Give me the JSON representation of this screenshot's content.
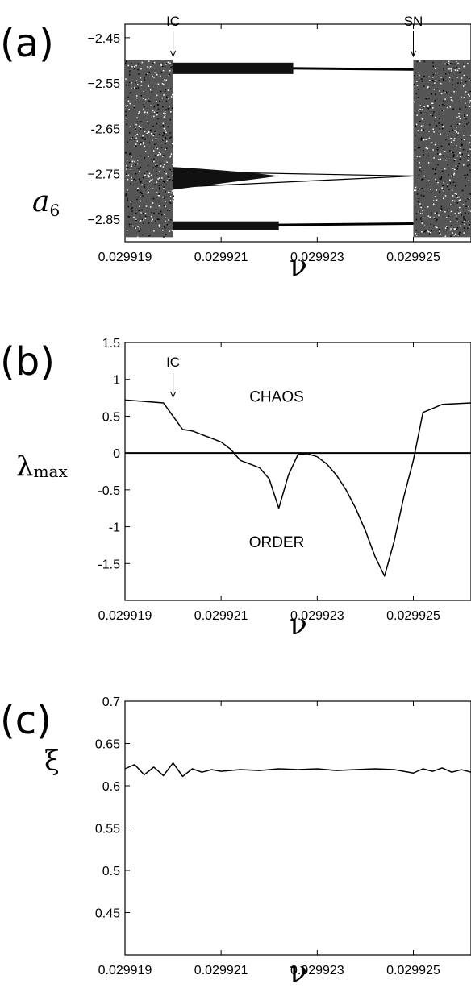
{
  "chart_data": [
    {
      "type": "scatter",
      "panel_label": "(a)",
      "xlabel": "ν",
      "ylabel": "a",
      "ylabel_sub": "6",
      "xlim": [
        0.029919,
        0.0299262
      ],
      "ylim": [
        -2.9,
        -2.42
      ],
      "xticks": [
        {
          "value": 0.029919,
          "label": "0.029919"
        },
        {
          "value": 0.029921,
          "label": "0.029921"
        },
        {
          "value": 0.029923,
          "label": "0.029923"
        },
        {
          "value": 0.029925,
          "label": "0.029925"
        }
      ],
      "yticks": [
        {
          "value": -2.45,
          "label": "−2.45"
        },
        {
          "value": -2.55,
          "label": "−2.55"
        },
        {
          "value": -2.65,
          "label": "-2.65"
        },
        {
          "value": -2.75,
          "label": "−2.75"
        },
        {
          "value": -2.85,
          "label": "−2.85"
        }
      ],
      "chaotic_regions": [
        {
          "x_range": [
            0.029919,
            0.02992
          ],
          "y_range": [
            -2.89,
            -2.5
          ]
        },
        {
          "x_range": [
            0.029925,
            0.0299262
          ],
          "y_range": [
            -2.89,
            -2.5
          ]
        }
      ],
      "periodic_branches": [
        {
          "y_start": -2.515,
          "y_end": -2.52
        },
        {
          "y_start": -2.745,
          "y_end": -2.755
        },
        {
          "y_start": -2.78,
          "y_end": -2.755
        },
        {
          "y_start": -2.865,
          "y_end": -2.86
        }
      ],
      "annotations": [
        {
          "text": "IC",
          "x": 0.02992
        },
        {
          "text": "SN",
          "x": 0.029925
        }
      ]
    },
    {
      "type": "line",
      "panel_label": "(b)",
      "xlabel": "ν",
      "ylabel": "λ",
      "ylabel_sub": "max",
      "xlim": [
        0.029919,
        0.0299262
      ],
      "ylim": [
        -2.0,
        1.5
      ],
      "xticks": [
        {
          "value": 0.029919,
          "label": "0.029919"
        },
        {
          "value": 0.029921,
          "label": "0.029921"
        },
        {
          "value": 0.029923,
          "label": "0.029923"
        },
        {
          "value": 0.029925,
          "label": "0.029925"
        }
      ],
      "yticks": [
        {
          "value": 1.5,
          "label": "1.5"
        },
        {
          "value": 1,
          "label": "1"
        },
        {
          "value": 0.5,
          "label": "0.5"
        },
        {
          "value": 0,
          "label": "0"
        },
        {
          "value": -0.5,
          "label": "-0.5"
        },
        {
          "value": -1,
          "label": "-1"
        },
        {
          "value": -1.5,
          "label": "-1.5"
        }
      ],
      "zero_line": true,
      "x": [
        0.029919,
        0.0299194,
        0.0299198,
        0.02992,
        0.0299202,
        0.0299204,
        0.0299206,
        0.0299208,
        0.029921,
        0.0299212,
        0.0299214,
        0.0299216,
        0.0299218,
        0.029922,
        0.0299222,
        0.0299224,
        0.0299226,
        0.0299228,
        0.029923,
        0.0299232,
        0.0299234,
        0.0299236,
        0.0299238,
        0.029924,
        0.0299242,
        0.0299244,
        0.0299246,
        0.0299248,
        0.029925,
        0.0299252,
        0.0299256,
        0.0299262
      ],
      "y": [
        0.72,
        0.7,
        0.68,
        0.5,
        0.32,
        0.3,
        0.25,
        0.2,
        0.15,
        0.05,
        -0.1,
        -0.15,
        -0.2,
        -0.35,
        -0.75,
        -0.3,
        -0.02,
        -0.01,
        -0.05,
        -0.15,
        -0.3,
        -0.5,
        -0.75,
        -1.05,
        -1.4,
        -1.67,
        -1.2,
        -0.6,
        -0.1,
        0.55,
        0.66,
        0.68
      ],
      "region_labels": [
        {
          "text": "CHAOS"
        },
        {
          "text": "ORDER"
        }
      ],
      "annotations": [
        {
          "text": "IC",
          "x": 0.02992
        }
      ]
    },
    {
      "type": "line",
      "panel_label": "(c)",
      "xlabel": "ν",
      "ylabel": "ξ",
      "xlim": [
        0.029919,
        0.0299262
      ],
      "ylim": [
        0.4,
        0.7
      ],
      "xticks": [
        {
          "value": 0.029919,
          "label": "0.029919"
        },
        {
          "value": 0.029921,
          "label": "0.029921"
        },
        {
          "value": 0.029923,
          "label": "0.029923"
        },
        {
          "value": 0.029925,
          "label": "0.029925"
        }
      ],
      "yticks": [
        {
          "value": 0.7,
          "label": "0.7"
        },
        {
          "value": 0.65,
          "label": "0.65"
        },
        {
          "value": 0.6,
          "label": "0.6"
        },
        {
          "value": 0.55,
          "label": "0.55"
        },
        {
          "value": 0.5,
          "label": "0.5"
        },
        {
          "value": 0.45,
          "label": "0.45"
        }
      ],
      "x": [
        0.029919,
        0.0299192,
        0.0299194,
        0.0299196,
        0.0299198,
        0.02992,
        0.0299202,
        0.0299204,
        0.0299206,
        0.0299208,
        0.029921,
        0.0299214,
        0.0299218,
        0.0299222,
        0.0299226,
        0.029923,
        0.0299234,
        0.0299238,
        0.0299242,
        0.0299246,
        0.029925,
        0.0299252,
        0.0299254,
        0.0299256,
        0.0299258,
        0.029926,
        0.0299262
      ],
      "y": [
        0.62,
        0.625,
        0.613,
        0.622,
        0.612,
        0.627,
        0.611,
        0.62,
        0.616,
        0.619,
        0.617,
        0.619,
        0.618,
        0.62,
        0.619,
        0.62,
        0.618,
        0.619,
        0.62,
        0.619,
        0.615,
        0.62,
        0.617,
        0.621,
        0.616,
        0.619,
        0.616
      ]
    }
  ]
}
